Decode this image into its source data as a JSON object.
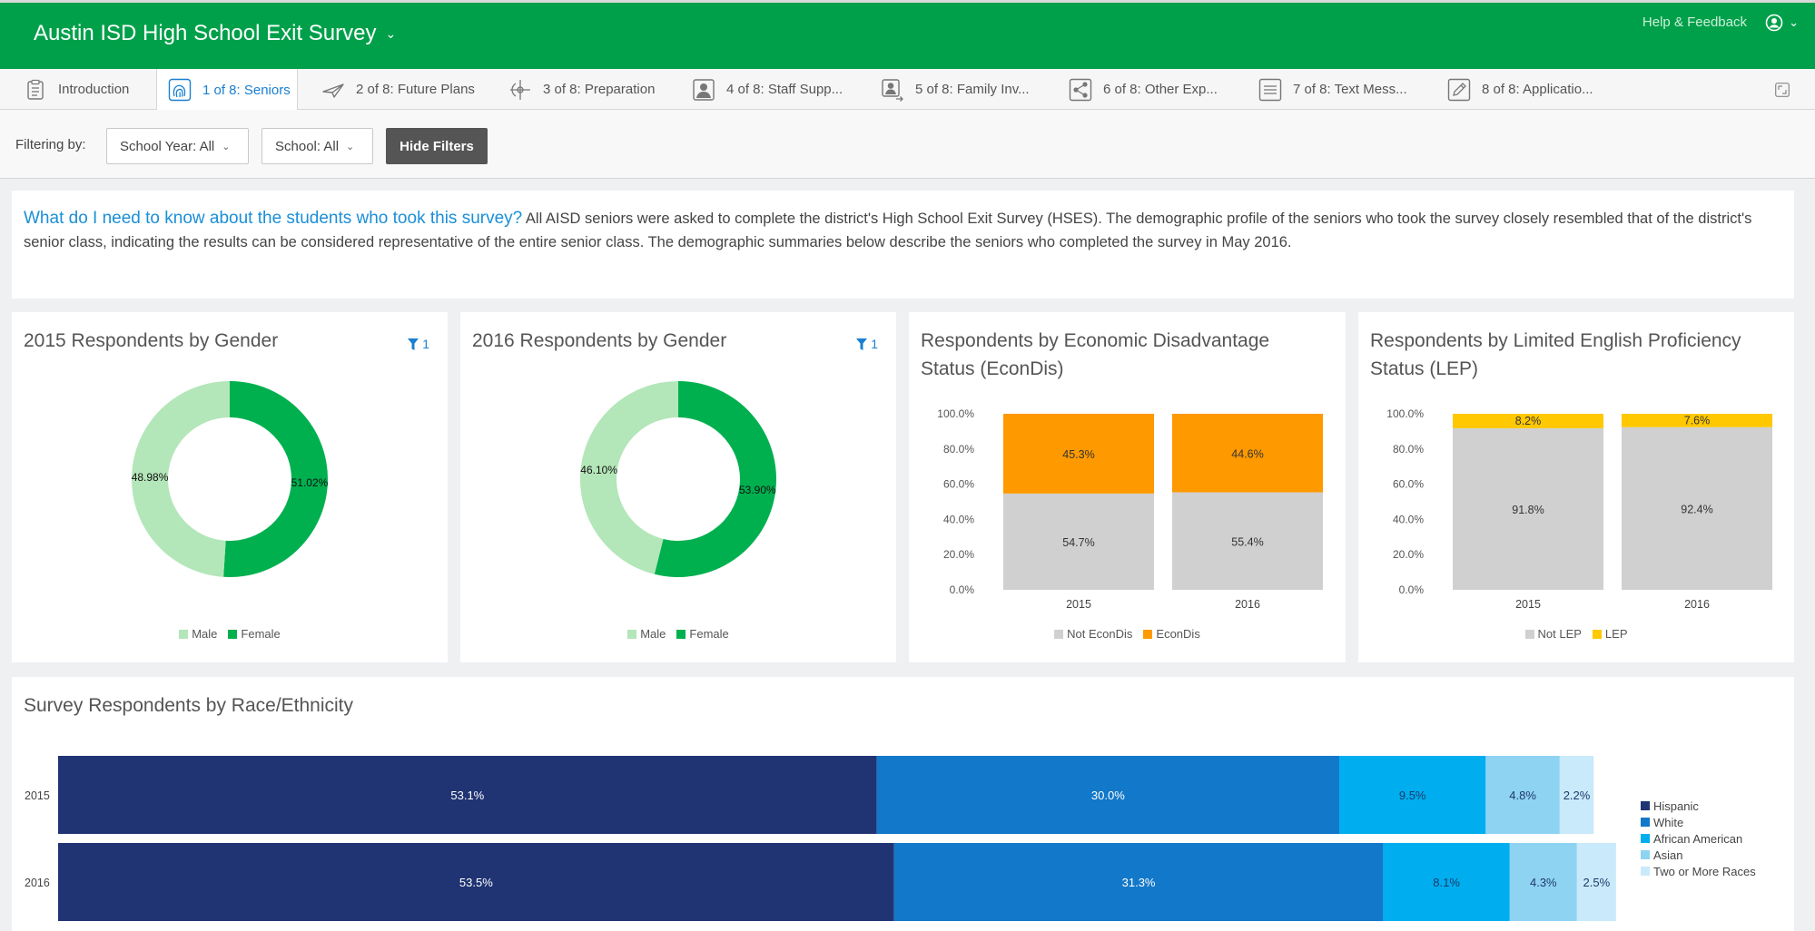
{
  "header": {
    "title": "Austin ISD High School Exit Survey",
    "help": "Help & Feedback"
  },
  "tabs": [
    {
      "label": "Introduction",
      "icon": "clipboard-icon"
    },
    {
      "label": "1 of 8: Seniors",
      "icon": "fingerprint-icon"
    },
    {
      "label": "2 of 8: Future Plans",
      "icon": "paper-plane-icon"
    },
    {
      "label": "3 of 8: Preparation",
      "icon": "target-icon"
    },
    {
      "label": "4 of 8: Staff Supp...",
      "icon": "person-card-icon"
    },
    {
      "label": "5 of 8: Family Inv...",
      "icon": "person-arrow-icon"
    },
    {
      "label": "6 of 8: Other Exp...",
      "icon": "share-icon"
    },
    {
      "label": "7 of 8: Text Mess...",
      "icon": "lines-icon"
    },
    {
      "label": "8 of 8: Applicatio...",
      "icon": "pencil-icon"
    }
  ],
  "filters": {
    "label": "Filtering by:",
    "school_year": "School Year: All",
    "school": "School: All",
    "hide": "Hide Filters"
  },
  "intro": {
    "question": "What do I need to know about the students who took this survey?",
    "text": "All AISD seniors were asked to complete the district's High School Exit Survey (HSES). The demographic profile of the seniors who took the survey closely resembled that of the district's senior class, indicating the results can be considered representative of the entire senior class. The demographic summaries below describe the seniors who completed the survey in May 2016."
  },
  "colors": {
    "male": "#b3e6b8",
    "female": "#00b04f",
    "econdis": "#ff9900",
    "not_econdis": "#d0d0d0",
    "lep": "#ffc800",
    "not_lep": "#d0d0d0",
    "hispanic": "#203473",
    "white": "#1278c9",
    "african_american": "#00aeef",
    "asian": "#8fd3f3",
    "two_or_more": "#c9eafa"
  },
  "chart_data": [
    {
      "id": "gender2015",
      "type": "pie",
      "title": "2015 Respondents by Gender",
      "filter_count": "1",
      "labels": [
        "Male",
        "Female"
      ],
      "values": [
        48.98,
        51.02
      ],
      "value_labels": [
        "48.98%",
        "51.02%"
      ],
      "legend": [
        "Male",
        "Female"
      ]
    },
    {
      "id": "gender2016",
      "type": "pie",
      "title": "2016 Respondents by Gender",
      "filter_count": "1",
      "labels": [
        "Male",
        "Female"
      ],
      "values": [
        46.1,
        53.9
      ],
      "value_labels": [
        "46.10%",
        "53.90%"
      ],
      "legend": [
        "Male",
        "Female"
      ]
    },
    {
      "id": "econdis",
      "type": "bar",
      "stacked": true,
      "title": "Respondents by Economic Disadvantage Status (EconDis)",
      "categories": [
        "2015",
        "2016"
      ],
      "series": [
        {
          "name": "Not EconDis",
          "values": [
            54.7,
            55.4
          ],
          "labels": [
            "54.7%",
            "55.4%"
          ]
        },
        {
          "name": "EconDis",
          "values": [
            45.3,
            44.6
          ],
          "labels": [
            "45.3%",
            "44.6%"
          ]
        }
      ],
      "yticks": [
        "0.0%",
        "20.0%",
        "40.0%",
        "60.0%",
        "80.0%",
        "100.0%"
      ],
      "ylim": [
        0,
        100
      ]
    },
    {
      "id": "lep",
      "type": "bar",
      "stacked": true,
      "title": "Respondents by Limited English Proficiency Status (LEP)",
      "categories": [
        "2015",
        "2016"
      ],
      "series": [
        {
          "name": "Not LEP",
          "values": [
            91.8,
            92.4
          ],
          "labels": [
            "91.8%",
            "92.4%"
          ]
        },
        {
          "name": "LEP",
          "values": [
            8.2,
            7.6
          ],
          "labels": [
            "8.2%",
            "7.6%"
          ]
        }
      ],
      "yticks": [
        "0.0%",
        "20.0%",
        "40.0%",
        "60.0%",
        "80.0%",
        "100.0%"
      ],
      "ylim": [
        0,
        100
      ]
    },
    {
      "id": "race",
      "type": "bar",
      "orientation": "horizontal",
      "stacked": true,
      "title": "Survey Respondents by Race/Ethnicity",
      "categories": [
        "2015",
        "2016"
      ],
      "series": [
        {
          "name": "Hispanic",
          "values": [
            53.1,
            53.5
          ],
          "labels": [
            "53.1%",
            "53.5%"
          ]
        },
        {
          "name": "White",
          "values": [
            30.0,
            31.3
          ],
          "labels": [
            "30.0%",
            "31.3%"
          ]
        },
        {
          "name": "African American",
          "values": [
            9.5,
            8.1
          ],
          "labels": [
            "9.5%",
            "8.1%"
          ]
        },
        {
          "name": "Asian",
          "values": [
            4.8,
            4.3
          ],
          "labels": [
            "4.8%",
            "4.3%"
          ]
        },
        {
          "name": "Two or More Races",
          "values": [
            2.2,
            2.5
          ],
          "labels": [
            "2.2%",
            "2.5%"
          ]
        }
      ]
    }
  ]
}
